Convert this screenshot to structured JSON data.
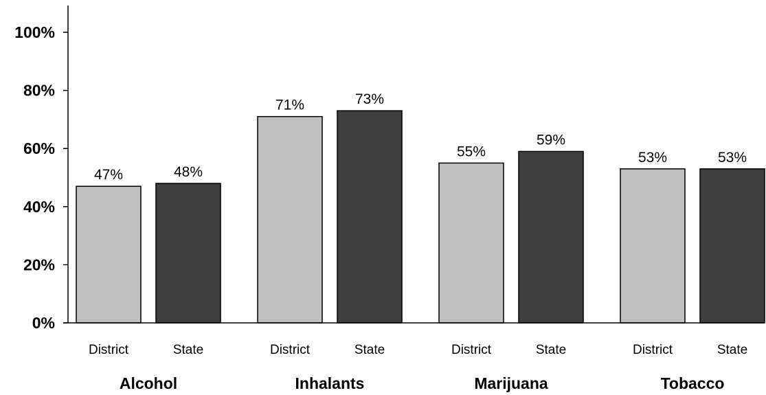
{
  "chart_data": {
    "type": "bar",
    "categories": [
      "Alcohol",
      "Inhalants",
      "Marijuana",
      "Tobacco"
    ],
    "series": [
      {
        "name": "District",
        "values": [
          47,
          71,
          55,
          53
        ],
        "color": "#c0c0c0"
      },
      {
        "name": "State",
        "values": [
          48,
          73,
          59,
          53
        ],
        "color": "#3f3f3f"
      }
    ],
    "data_labels": [
      [
        "47%",
        "71%",
        "55%",
        "53%"
      ],
      [
        "48%",
        "73%",
        "59%",
        "53%"
      ]
    ],
    "yticks": [
      0,
      20,
      40,
      60,
      80,
      100
    ],
    "ytick_labels": [
      "0%",
      "20%",
      "40%",
      "60%",
      "80%",
      "100%"
    ],
    "ylim": [
      0,
      110
    ],
    "grid": false,
    "legend": "none"
  }
}
